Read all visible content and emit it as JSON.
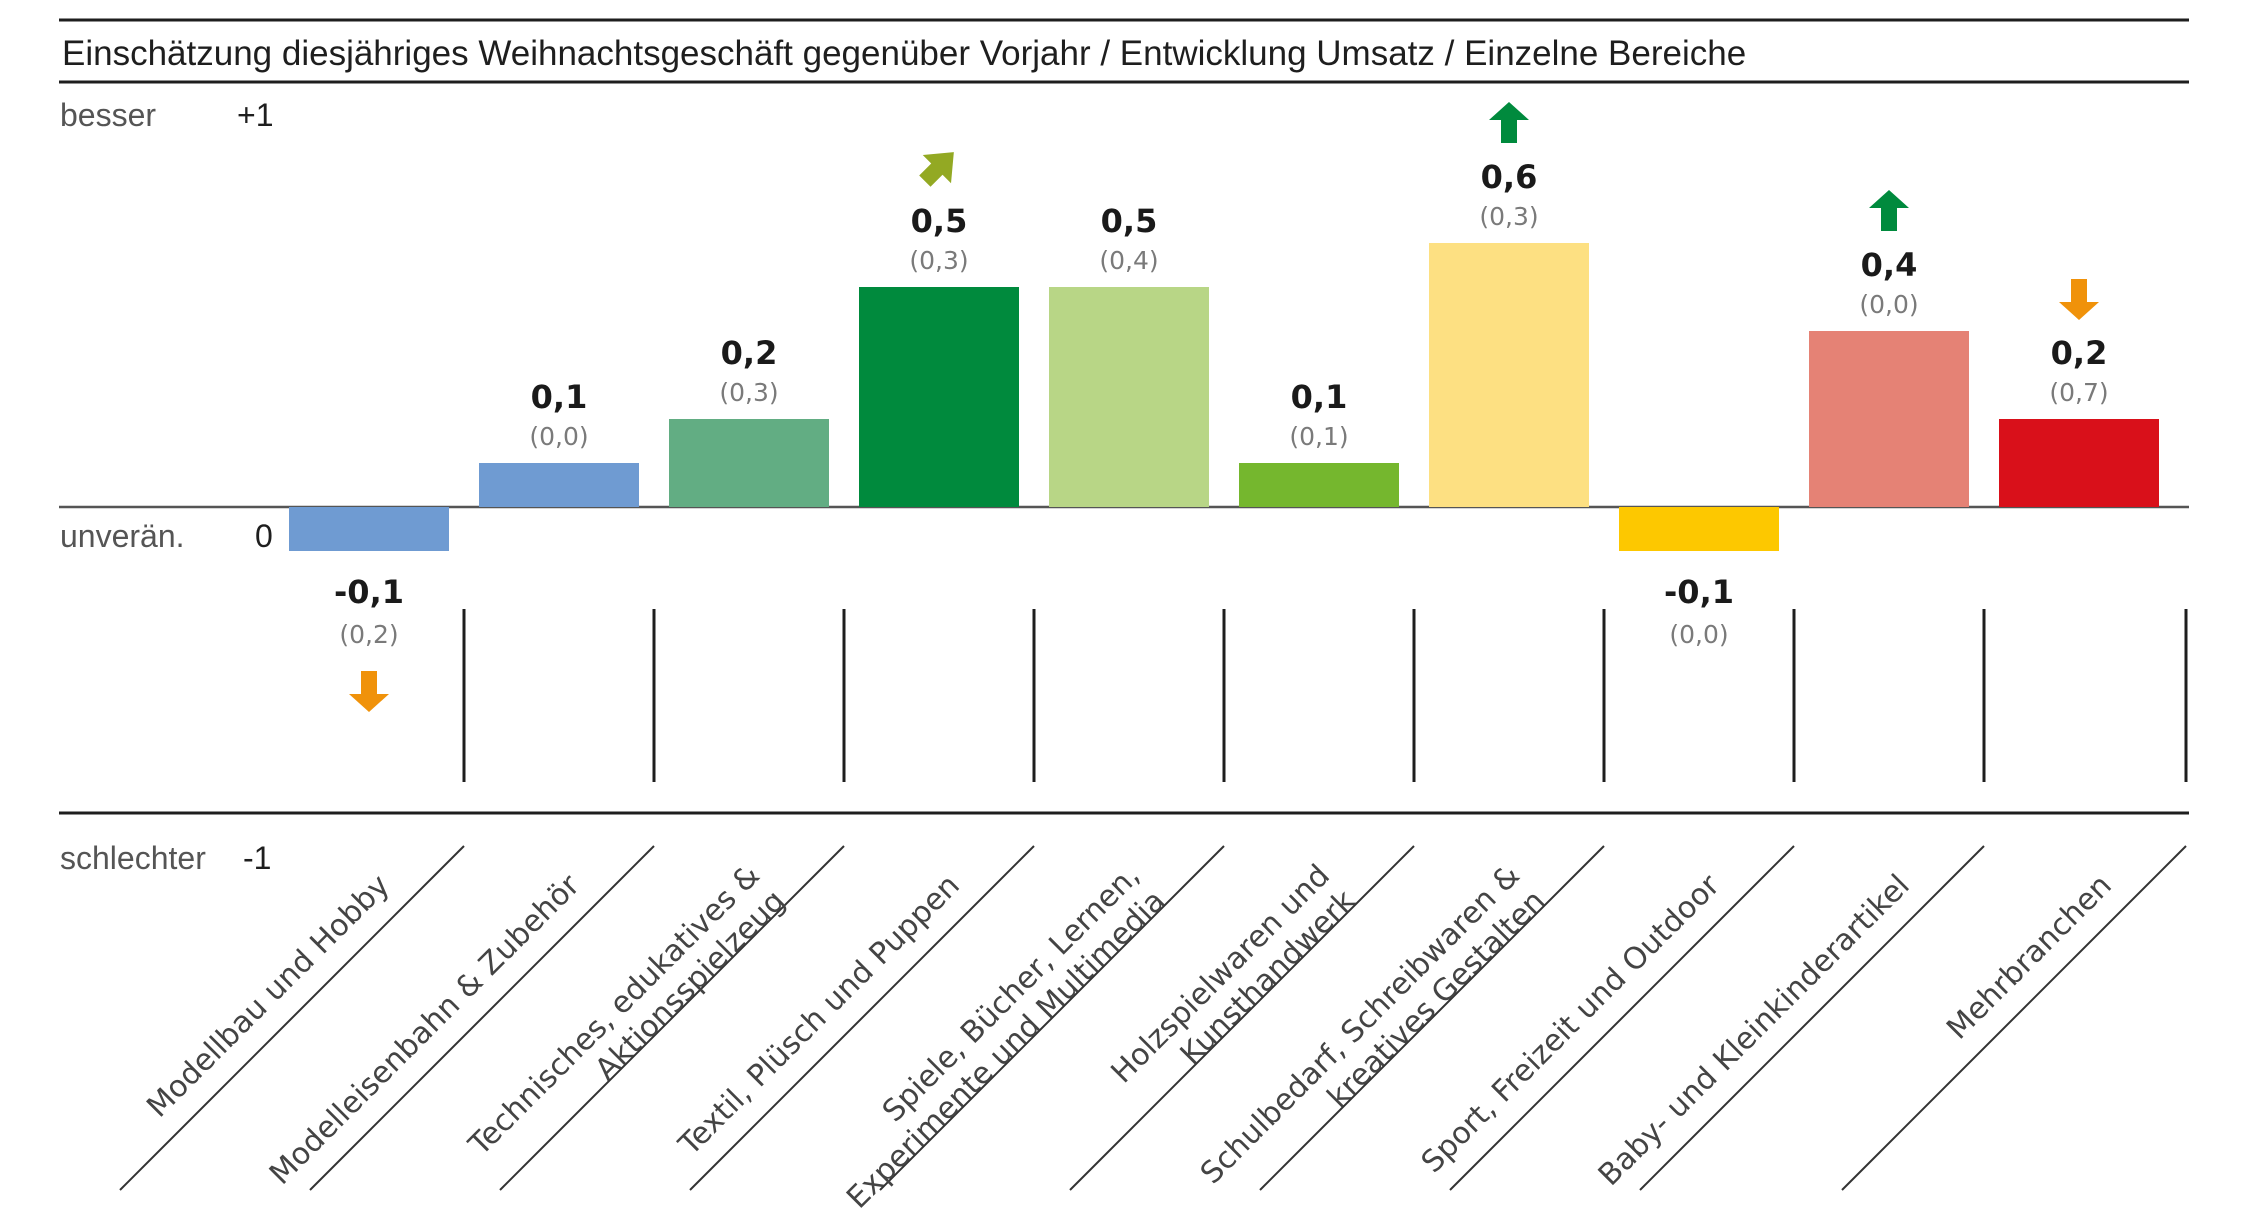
{
  "chart_data": {
    "type": "bar",
    "title": "Einschätzung diesjähriges Weihnachtsgeschäft gegenüber Vorjahr / Entwicklung Umsatz / Einzelne Bereiche",
    "xlabel": "",
    "ylabel": "",
    "ylim": [
      -1,
      1
    ],
    "y_axis_labels": [
      {
        "word": "besser",
        "value_label": "+1",
        "value": 1
      },
      {
        "word": "unverän.",
        "value_label": "0",
        "value": 0
      },
      {
        "word": "schlechter",
        "value_label": "-1",
        "value": -1
      }
    ],
    "categories": [
      [
        "Modellbau und  Hobby"
      ],
      [
        "Modelleisenbahn & Zubehör"
      ],
      [
        "Technisches, edukatives &",
        "Aktionsspielzeug"
      ],
      [
        "Textil, Plüsch und Puppen"
      ],
      [
        "Spiele, Bücher, Lernen,",
        "Experimente und Multimedia"
      ],
      [
        "Holzspielwaren und",
        "Kunsthandwerk"
      ],
      [
        "Schulbedarf, Schreibwaren &",
        "kreatives Gestalten"
      ],
      [
        "Sport, Freizeit und Outdoor"
      ],
      [
        "Baby- und Kleinkinderartikel"
      ],
      [
        "Mehrbranchen"
      ]
    ],
    "values": [
      -0.1,
      0.1,
      0.2,
      0.5,
      0.5,
      0.1,
      0.6,
      -0.1,
      0.4,
      0.2
    ],
    "value_labels": [
      "-0,1",
      "0,1",
      "0,2",
      "0,5",
      "0,5",
      "0,1",
      "0,6",
      "-0,1",
      "0,4",
      "0,2"
    ],
    "previous_year_values": [
      0.2,
      0.0,
      0.3,
      0.3,
      0.4,
      0.1,
      0.3,
      0.0,
      0.0,
      0.7
    ],
    "previous_year_labels": [
      "(0,2)",
      "(0,0)",
      "(0,3)",
      "(0,3)",
      "(0,4)",
      "(0,1)",
      "(0,3)",
      "(0,0)",
      "(0,0)",
      "(0,7)"
    ],
    "trend_arrows": [
      "down",
      "none",
      "none",
      "up-right",
      "none",
      "none",
      "up",
      "none",
      "up",
      "down"
    ],
    "bar_colors": [
      "#6f9bd2",
      "#6f9bd2",
      "#62ad83",
      "#008a3d",
      "#b8d686",
      "#75b72e",
      "#fde082",
      "#fdc800",
      "#e58275",
      "#d9101a"
    ],
    "arrow_colors": {
      "up": "#008a3d",
      "up-right": "#93a923",
      "down": "#f0920a"
    },
    "grid": false,
    "legend": "none"
  }
}
